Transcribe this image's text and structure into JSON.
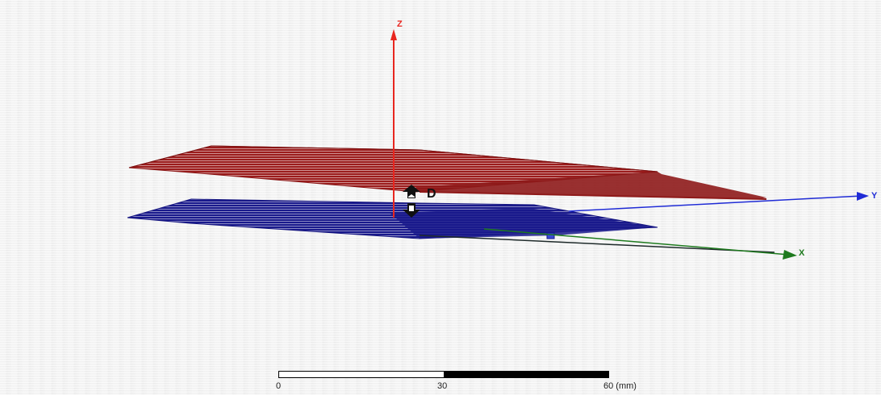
{
  "viewer": {
    "axes": {
      "z_label": "Z",
      "y_label": "Y",
      "x_label": "X",
      "colors": {
        "z": "#e8261f",
        "y": "#1f2bd6",
        "x": "#1e7a1e"
      }
    },
    "planes": {
      "top_color": "#9b1c1c",
      "bottom_color": "#1a1a8c"
    },
    "dimension_label": "D",
    "scale_bar": {
      "ticks": [
        "0",
        "30",
        "60 (mm)"
      ]
    }
  }
}
